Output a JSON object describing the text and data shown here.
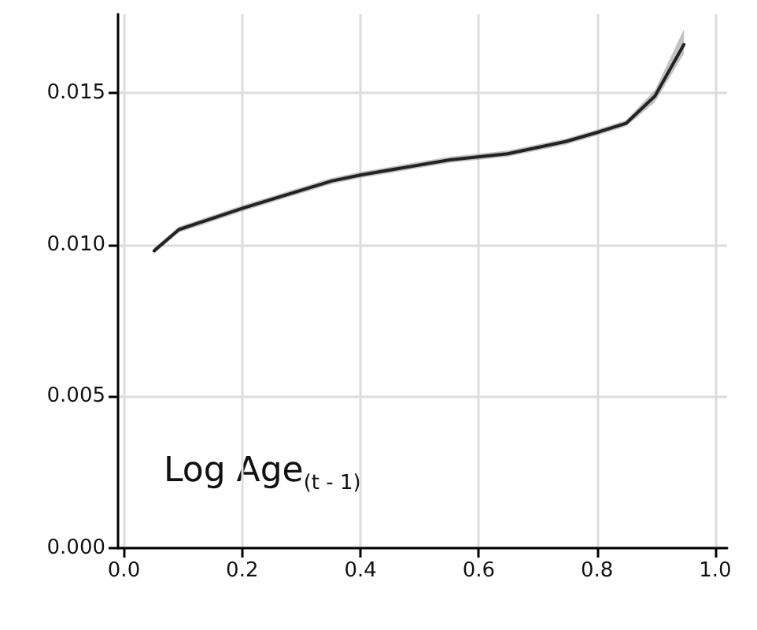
{
  "chart_data": {
    "type": "line",
    "x": [
      0.051,
      0.093,
      0.2,
      0.351,
      0.4,
      0.551,
      0.649,
      0.747,
      0.8,
      0.849,
      0.898,
      0.947
    ],
    "series": [
      {
        "color": "#222222",
        "values": [
          0.0098,
          0.0105,
          0.0112,
          0.0121,
          0.0123,
          0.0128,
          0.013,
          0.0134,
          0.0137,
          0.014,
          0.0149,
          0.0166
        ],
        "lower": [
          0.0097,
          0.0104,
          0.0111,
          0.012,
          0.0122,
          0.0127,
          0.0129,
          0.0133,
          0.0136,
          0.0139,
          0.0147,
          0.0163
        ],
        "upper": [
          0.0099,
          0.0106,
          0.0113,
          0.0122,
          0.0124,
          0.0129,
          0.0131,
          0.0135,
          0.0138,
          0.0141,
          0.0151,
          0.0171
        ]
      }
    ],
    "xlim": [
      -0.01,
      1.02
    ],
    "ylim": [
      0,
      0.0176
    ],
    "xticks": [
      {
        "value": 0,
        "label": "0.0"
      },
      {
        "value": 0.2,
        "label": "0.2"
      },
      {
        "value": 0.4,
        "label": "0.4"
      },
      {
        "value": 0.6,
        "label": "0.6"
      },
      {
        "value": 0.8,
        "label": "0.8"
      },
      {
        "value": 1,
        "label": "1.0"
      }
    ],
    "yticks": [
      {
        "value": 0,
        "label": "0.000"
      },
      {
        "value": 0.005,
        "label": "0.005"
      },
      {
        "value": 0.01,
        "label": "0.010"
      },
      {
        "value": 0.015,
        "label": "0.015"
      }
    ],
    "annotations": [
      "Log Age$_{(t - 1)}$"
    ],
    "grid": true,
    "marker": "none",
    "line_style": "solid"
  }
}
